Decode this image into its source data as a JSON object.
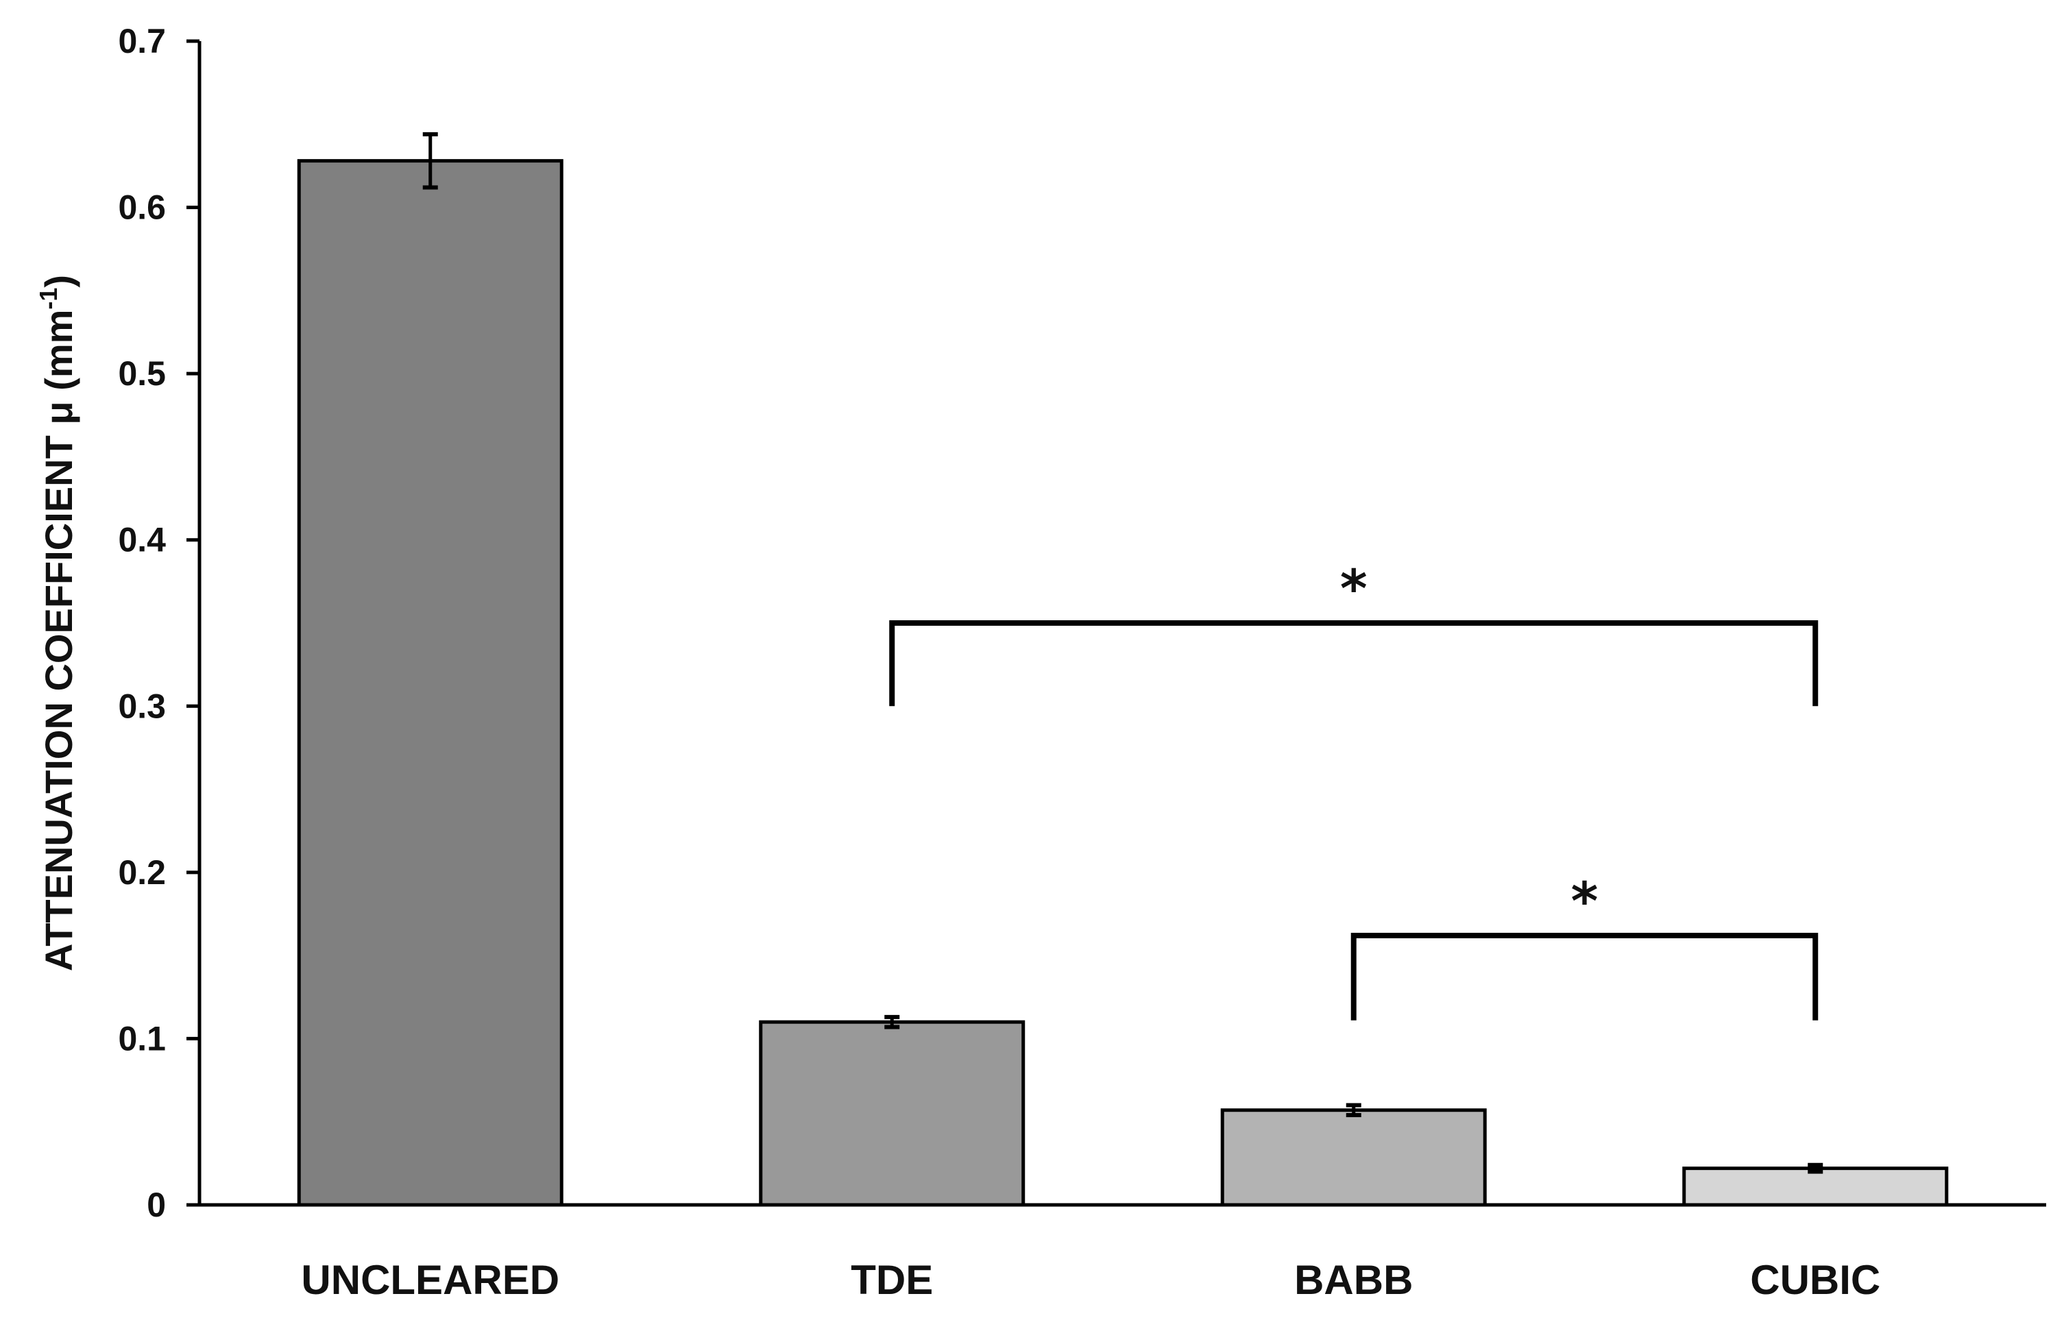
{
  "chart_data": {
    "type": "bar",
    "categories": [
      "UNCLEARED",
      "TDE",
      "BABB",
      "CUBIC"
    ],
    "values": [
      0.628,
      0.11,
      0.057,
      0.022
    ],
    "error": [
      0.016,
      0.003,
      0.003,
      0.002
    ],
    "bar_colors": [
      "#808080",
      "#999999",
      "#b3b3b3",
      "#d6d6d6"
    ],
    "bar_edge_color": "#000000",
    "ylabel_main": "ATTENUATION COEFFICIENT μ (mm",
    "ylabel_sup": "-1",
    "ylabel_end": ")",
    "xlabel": "",
    "ylim": [
      0,
      0.7
    ],
    "yticks": [
      0,
      0.1,
      0.2,
      0.3,
      0.4,
      0.5,
      0.6,
      0.7
    ],
    "ytick_labels": [
      "0",
      "0.1",
      "0.2",
      "0.3",
      "0.4",
      "0.5",
      "0.6",
      "0.7"
    ],
    "grid": false,
    "legend": "none",
    "significance": [
      {
        "from": "TDE",
        "to": "CUBIC",
        "bracket_y": 0.35,
        "leg_bottom": 0.3,
        "label": "*"
      },
      {
        "from": "BABB",
        "to": "CUBIC",
        "bracket_y": 0.162,
        "leg_bottom": 0.111,
        "label": "*"
      }
    ]
  }
}
